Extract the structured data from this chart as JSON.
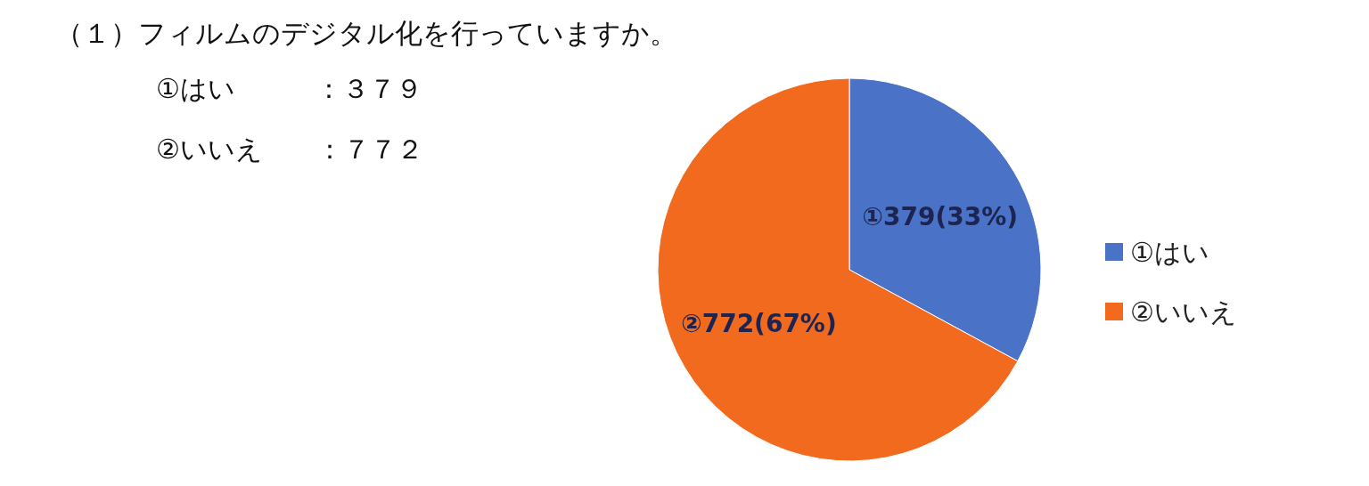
{
  "chart_data": {
    "type": "pie",
    "title": "（１）フィルムのデジタル化を行っていますか。",
    "annotations": [
      "①はい　　　：３７９",
      "②いいえ　　：７７２"
    ],
    "categories": [
      "①はい",
      "②いいえ"
    ],
    "values": [
      379,
      772
    ],
    "colors": [
      "#4a72c6",
      "#f26a1e"
    ],
    "value_labels": [
      "①379(33%)",
      "②772(67%)"
    ],
    "legend": "right"
  }
}
